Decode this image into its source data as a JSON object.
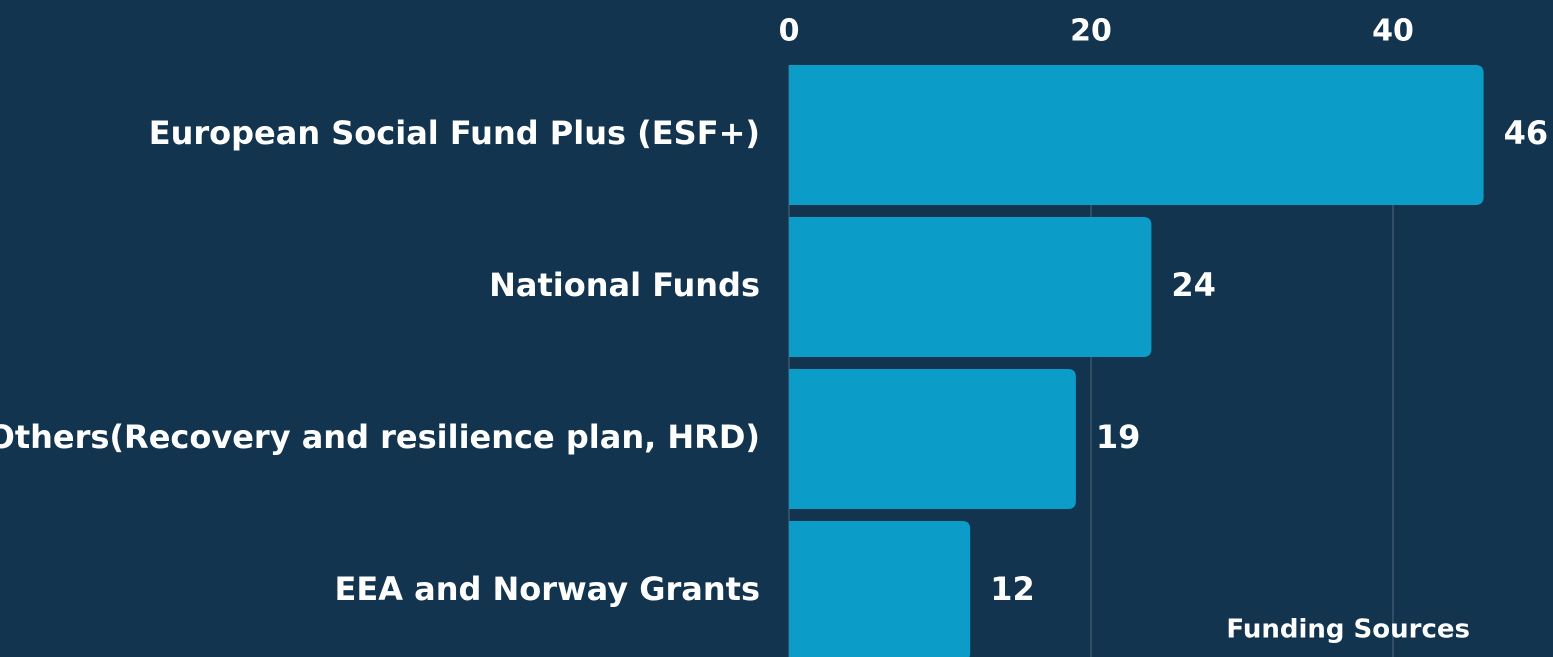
{
  "chart_data": {
    "type": "bar",
    "orientation": "horizontal",
    "categories": [
      "European Social Fund Plus (ESF+)",
      "National Funds",
      "Others(Recovery and resilience plan, HRD)",
      "EEA and Norway Grants"
    ],
    "values": [
      46,
      24,
      19,
      12
    ],
    "color": "#0b9dc8",
    "xlim": [
      0,
      50
    ],
    "xticks": [
      0,
      20,
      40
    ],
    "grid": true,
    "x_label": "Funding Sources"
  }
}
